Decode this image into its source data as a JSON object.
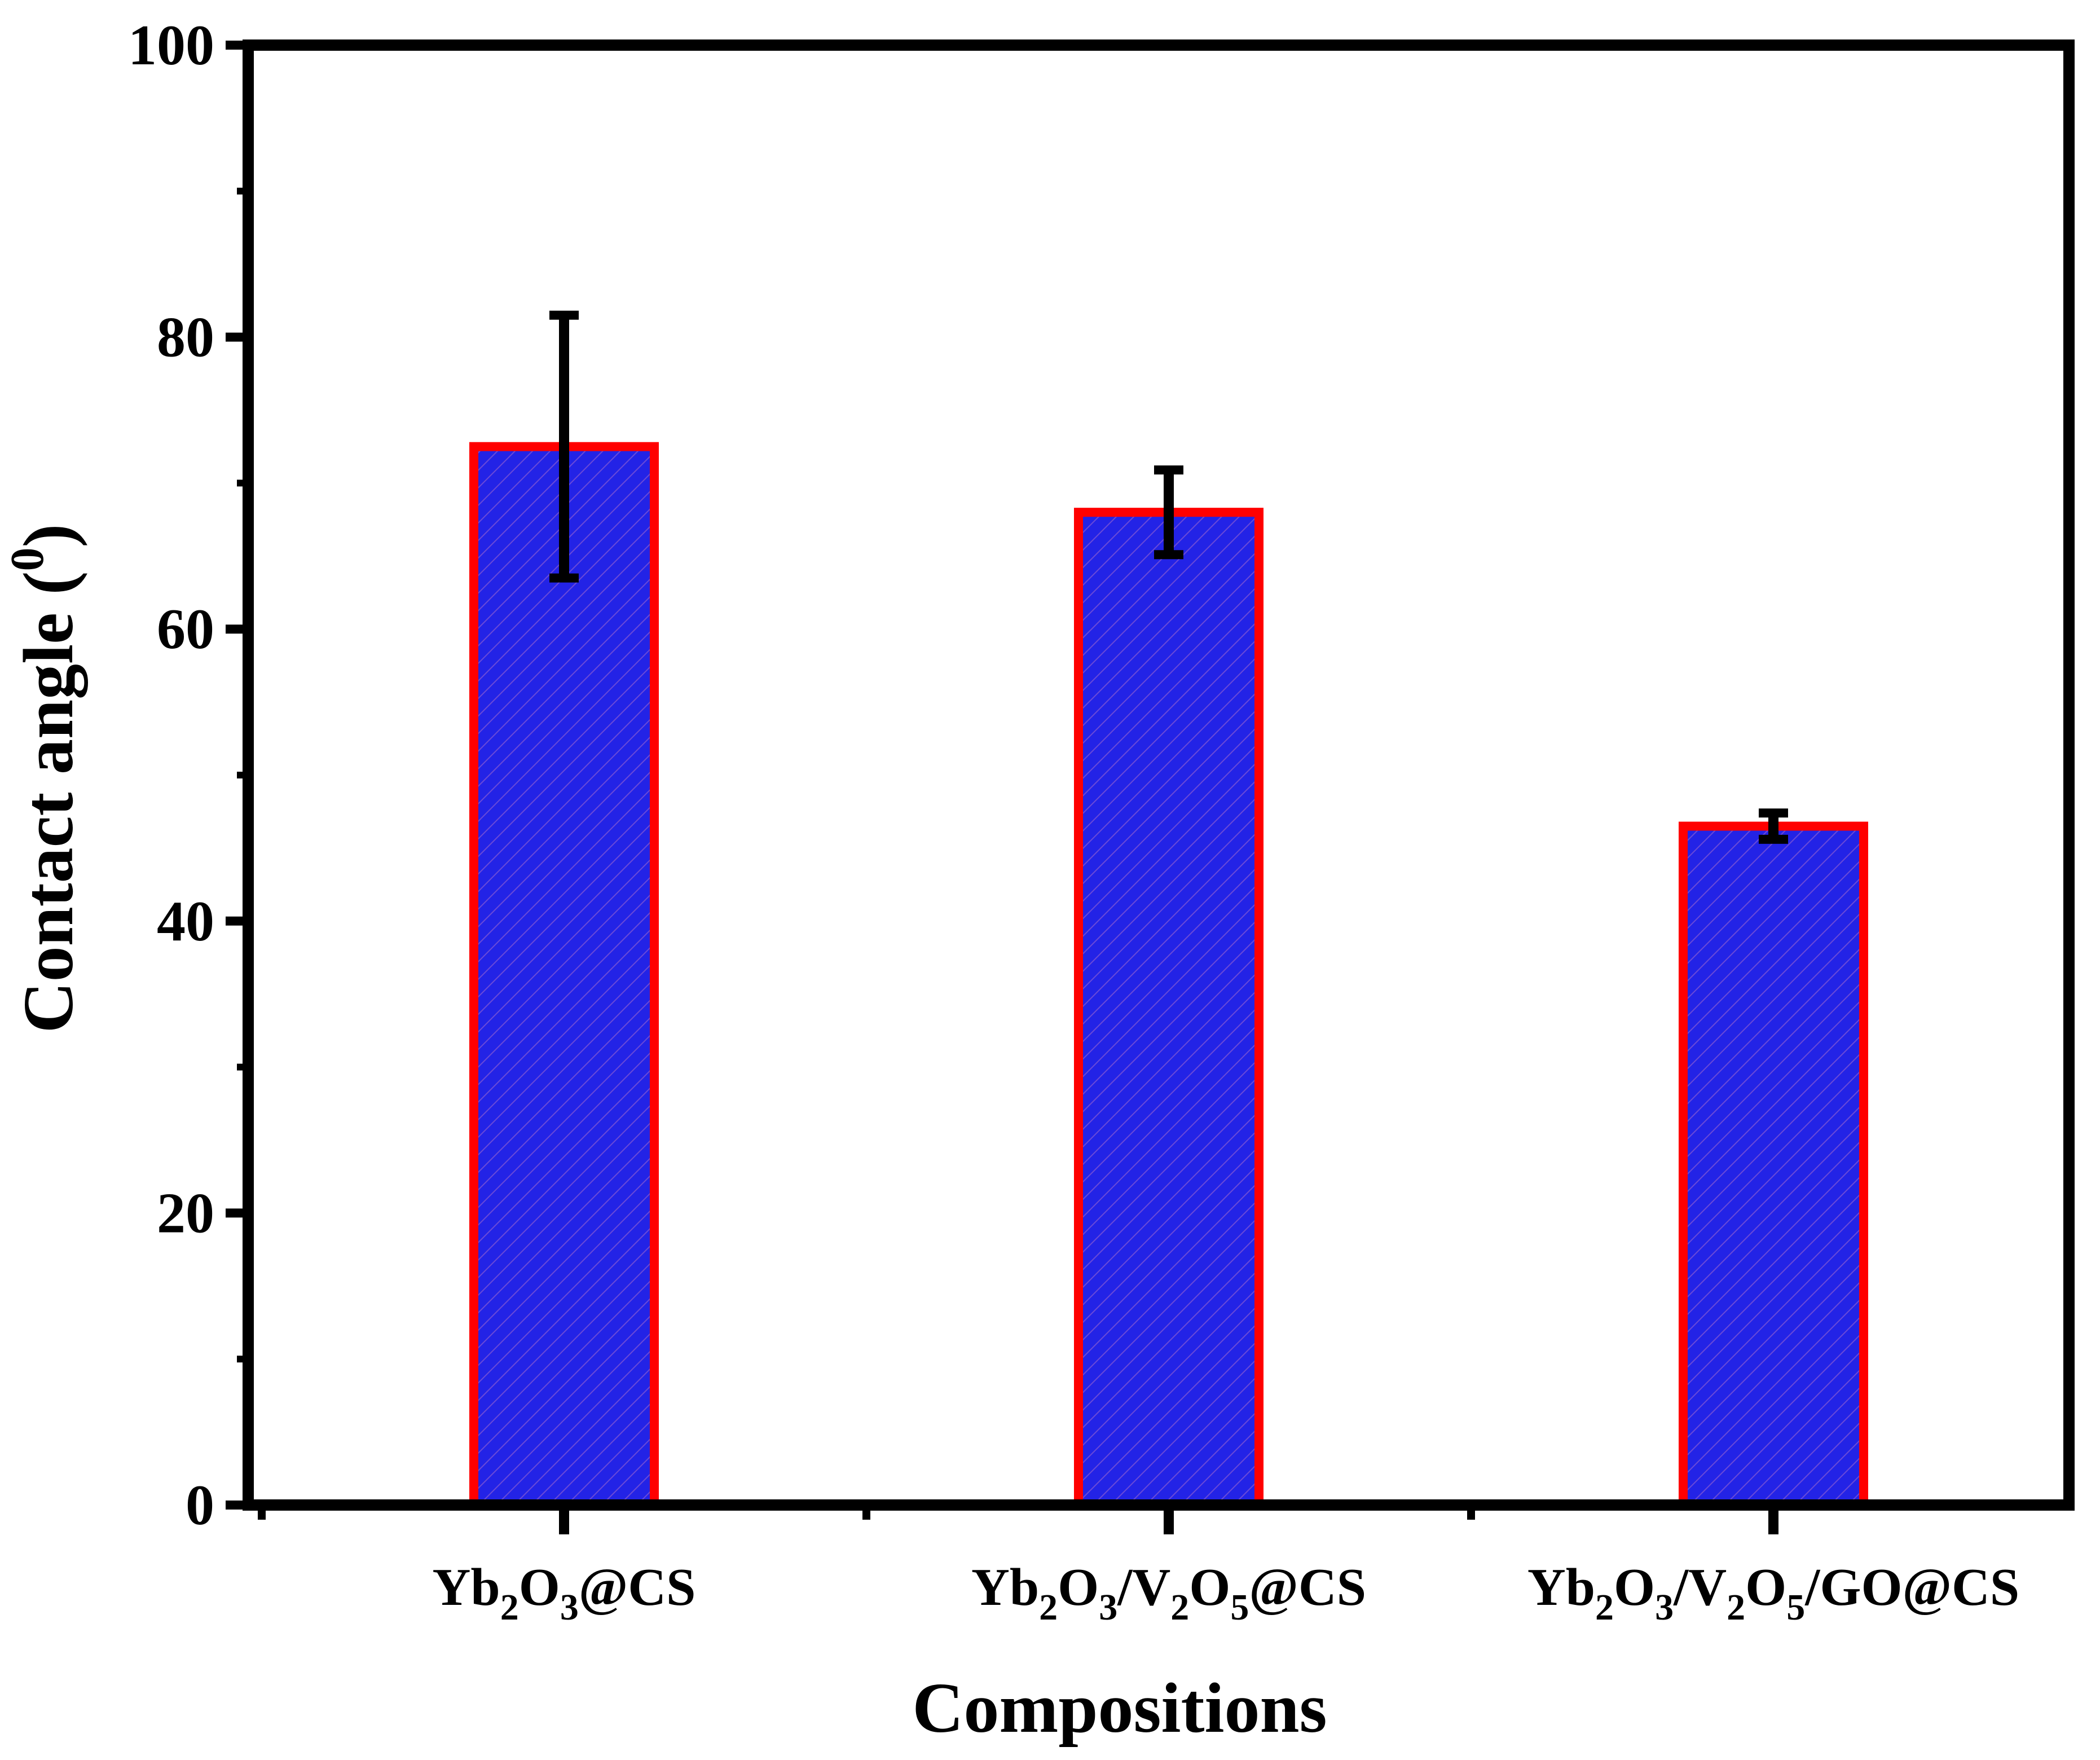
{
  "chart_data": {
    "type": "bar",
    "title": "",
    "xlabel": "Compositions",
    "ylabel": {
      "text": "Contact angle (",
      "superscript": "0",
      "suffix": ")"
    },
    "ylim": [
      0,
      100
    ],
    "yticks": [
      0,
      20,
      40,
      60,
      80,
      100
    ],
    "yticks_labels": [
      "0",
      "20",
      "40",
      "60",
      "80",
      "100"
    ],
    "categories": [
      {
        "label": "Yb2O3@CS",
        "parts": [
          {
            "t": "Yb",
            "sub": false
          },
          {
            "t": "2",
            "sub": true
          },
          {
            "t": "O",
            "sub": false
          },
          {
            "t": "3",
            "sub": true
          },
          {
            "t": "@CS",
            "sub": false
          }
        ]
      },
      {
        "label": "Yb2O3/V2O5@CS",
        "parts": [
          {
            "t": "Yb",
            "sub": false
          },
          {
            "t": "2",
            "sub": true
          },
          {
            "t": "O",
            "sub": false
          },
          {
            "t": "3",
            "sub": true
          },
          {
            "t": "/V",
            "sub": false
          },
          {
            "t": "2",
            "sub": true
          },
          {
            "t": "O",
            "sub": false
          },
          {
            "t": "5",
            "sub": true
          },
          {
            "t": "@CS",
            "sub": false
          }
        ]
      },
      {
        "label": "Yb2O3/V2O5/GO@CS",
        "parts": [
          {
            "t": "Yb",
            "sub": false
          },
          {
            "t": "2",
            "sub": true
          },
          {
            "t": "O",
            "sub": false
          },
          {
            "t": "3",
            "sub": true
          },
          {
            "t": "/V",
            "sub": false
          },
          {
            "t": "2",
            "sub": true
          },
          {
            "t": "O",
            "sub": false
          },
          {
            "t": "5",
            "sub": true
          },
          {
            "t": "/GO@CS",
            "sub": false
          }
        ]
      }
    ],
    "values": [
      72.5,
      68.0,
      46.5
    ],
    "errors": [
      9.0,
      2.9,
      0.9
    ],
    "colors": {
      "bar_fill": "#2323e6",
      "bar_hatch": "#6a4ad8",
      "bar_edge": "#ff0000",
      "error_bar": "#000000",
      "axis": "#000000"
    },
    "grid": false,
    "legend": "none"
  }
}
